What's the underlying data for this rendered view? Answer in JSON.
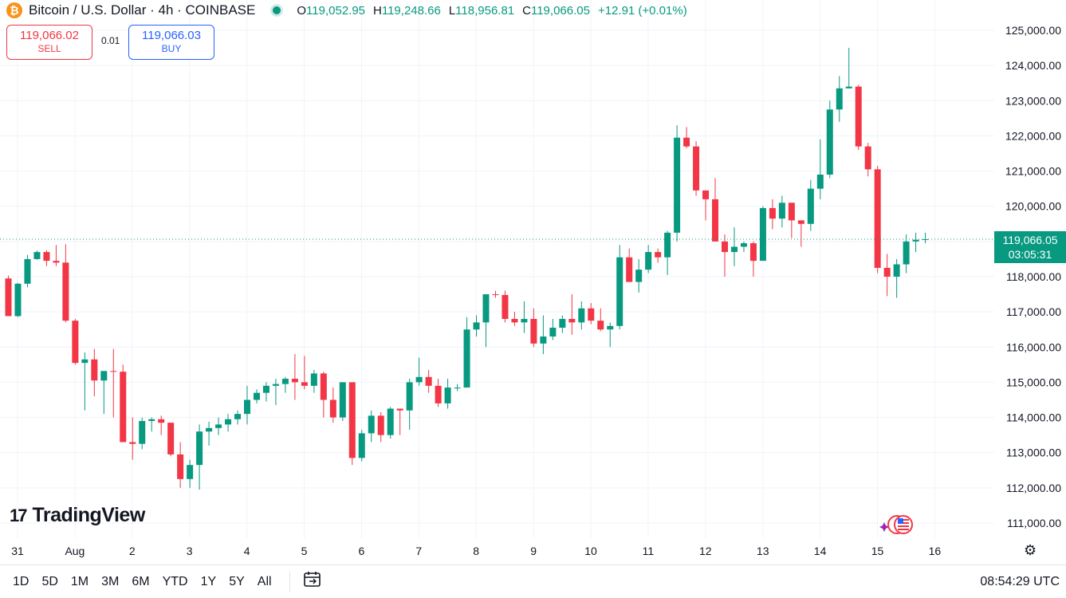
{
  "header": {
    "symbol": "Bitcoin / U.S. Dollar · 4h · COINBASE",
    "coin_glyph": "₿",
    "ohlc": [
      {
        "label": "O",
        "value": "119,052.95"
      },
      {
        "label": "H",
        "value": "119,248.66"
      },
      {
        "label": "L",
        "value": "118,956.81"
      },
      {
        "label": "C",
        "value": "119,066.05"
      }
    ],
    "change": "+12.91 (+0.01%)"
  },
  "trade": {
    "sell_price": "119,066.02",
    "sell_label": "SELL",
    "spread": "0.01",
    "buy_price": "119,066.03",
    "buy_label": "BUY"
  },
  "price_tag": {
    "price": "119,066.05",
    "countdown": "03:05:31"
  },
  "logo": {
    "text": "TradingView",
    "mark": "17"
  },
  "bottom_bar": {
    "timeframes": [
      "1D",
      "5D",
      "1M",
      "3M",
      "6M",
      "YTD",
      "1Y",
      "5Y",
      "All"
    ],
    "clock": "08:54:29 UTC"
  },
  "icons": {
    "coin": "bitcoin-icon",
    "calendar": "calendar-range-icon",
    "settings": "gear-icon",
    "events": "economic-events-icon"
  },
  "colors": {
    "up": "#089981",
    "down": "#f23645",
    "grid": "#f0f3fa",
    "text": "#131722",
    "sell": "#f23645",
    "buy": "#2962ff"
  },
  "chart_data": {
    "type": "candlestick",
    "interval": "4h",
    "ylim": [
      110500,
      125500
    ],
    "y_ticks": [
      111000,
      112000,
      113000,
      114000,
      115000,
      116000,
      117000,
      118000,
      119000,
      120000,
      121000,
      122000,
      123000,
      124000,
      125000
    ],
    "y_tick_labels": [
      "111,000.00",
      "112,000.00",
      "113,000.00",
      "114,000.00",
      "115,000.00",
      "116,000.00",
      "117,000.00",
      "118,000.00",
      "119,000.00",
      "120,000.00",
      "121,000.00",
      "122,000.00",
      "123,000.00",
      "124,000.00",
      "125,000.00"
    ],
    "x_labels": [
      "31",
      "Aug",
      "2",
      "3",
      "4",
      "5",
      "6",
      "7",
      "8",
      "9",
      "10",
      "11",
      "12",
      "13",
      "14",
      "15",
      "16"
    ],
    "last_price": 119066.05,
    "grid": true,
    "candles": [
      [
        117950,
        118030,
        116900,
        116880
      ],
      [
        116880,
        117820,
        116850,
        117800
      ],
      [
        117800,
        118620,
        117700,
        118500
      ],
      [
        118500,
        118740,
        118480,
        118700
      ],
      [
        118700,
        118750,
        118300,
        118450
      ],
      [
        118450,
        118900,
        118300,
        118400
      ],
      [
        118400,
        118920,
        116700,
        116750
      ],
      [
        116750,
        116800,
        115500,
        115550
      ],
      [
        115550,
        115850,
        114200,
        115650
      ],
      [
        115650,
        115950,
        114600,
        115050
      ],
      [
        115050,
        115320,
        114100,
        115320
      ],
      [
        115320,
        115950,
        114000,
        115300
      ],
      [
        115300,
        115500,
        113300,
        113300
      ],
      [
        113300,
        114000,
        112800,
        113250
      ],
      [
        113250,
        114000,
        113100,
        113900
      ],
      [
        113900,
        114000,
        113600,
        113950
      ],
      [
        113950,
        114050,
        113500,
        113850
      ],
      [
        113850,
        113850,
        112900,
        112950
      ],
      [
        112950,
        113300,
        112000,
        112250
      ],
      [
        112250,
        112800,
        112000,
        112650
      ],
      [
        112650,
        113800,
        111950,
        113600
      ],
      [
        113600,
        113880,
        113200,
        113700
      ],
      [
        113700,
        114000,
        113500,
        113800
      ],
      [
        113800,
        114100,
        113600,
        113950
      ],
      [
        113950,
        114200,
        113800,
        114100
      ],
      [
        114100,
        114900,
        113800,
        114500
      ],
      [
        114500,
        114800,
        114400,
        114700
      ],
      [
        114700,
        115000,
        114450,
        114900
      ],
      [
        114900,
        115100,
        114350,
        114950
      ],
      [
        114950,
        115150,
        114700,
        115100
      ],
      [
        115100,
        115800,
        114500,
        115000
      ],
      [
        115000,
        115750,
        114800,
        114900
      ],
      [
        114900,
        115350,
        114700,
        115250
      ],
      [
        115250,
        115300,
        114000,
        114500
      ],
      [
        114500,
        114850,
        113850,
        114000
      ],
      [
        114000,
        115000,
        113900,
        115000
      ],
      [
        115000,
        115000,
        112650,
        112850
      ],
      [
        112850,
        113650,
        112750,
        113550
      ],
      [
        113550,
        114200,
        113300,
        114050
      ],
      [
        114050,
        114150,
        113300,
        113500
      ],
      [
        113500,
        114300,
        113400,
        114250
      ],
      [
        114250,
        114250,
        113500,
        114200
      ],
      [
        114200,
        115100,
        113650,
        115000
      ],
      [
        115000,
        115700,
        114900,
        115150
      ],
      [
        115150,
        115350,
        114700,
        114900
      ],
      [
        114900,
        115100,
        114300,
        114400
      ],
      [
        114400,
        115100,
        114250,
        114850
      ],
      [
        114850,
        114950,
        114750,
        114850
      ],
      [
        114850,
        116850,
        114850,
        116500
      ],
      [
        116500,
        116900,
        116300,
        116700
      ],
      [
        116700,
        117400,
        116000,
        117500
      ],
      [
        117500,
        117600,
        117400,
        117480
      ],
      [
        117480,
        117600,
        116700,
        116800
      ],
      [
        116800,
        117000,
        116600,
        116700
      ],
      [
        116700,
        117300,
        116400,
        116800
      ],
      [
        116800,
        117100,
        116000,
        116100
      ],
      [
        116100,
        116900,
        115800,
        116300
      ],
      [
        116300,
        116800,
        116200,
        116550
      ],
      [
        116550,
        116900,
        116400,
        116800
      ],
      [
        116800,
        117500,
        116350,
        116700
      ],
      [
        116700,
        117300,
        116500,
        117100
      ],
      [
        117100,
        117250,
        116650,
        116750
      ],
      [
        116750,
        117100,
        116450,
        116500
      ],
      [
        116500,
        116700,
        116000,
        116600
      ],
      [
        116600,
        118900,
        116500,
        118550
      ],
      [
        118550,
        118800,
        117900,
        117850
      ],
      [
        117850,
        118500,
        117550,
        118200
      ],
      [
        118200,
        118900,
        118100,
        118700
      ],
      [
        118700,
        118800,
        118400,
        118550
      ],
      [
        118550,
        119300,
        118050,
        119250
      ],
      [
        119250,
        122300,
        119000,
        121950
      ],
      [
        121950,
        122250,
        121650,
        121700
      ],
      [
        121700,
        121850,
        120300,
        120450
      ],
      [
        120450,
        120450,
        119600,
        120200
      ],
      [
        120200,
        120800,
        119000,
        119000
      ],
      [
        119000,
        119200,
        118000,
        118700
      ],
      [
        118700,
        119400,
        118300,
        118850
      ],
      [
        118850,
        119000,
        118700,
        118950
      ],
      [
        118950,
        119000,
        118000,
        118450
      ],
      [
        118450,
        120000,
        118500,
        119950
      ],
      [
        119950,
        120200,
        119350,
        119650
      ],
      [
        119650,
        120300,
        119400,
        120100
      ],
      [
        120100,
        120100,
        119100,
        119600
      ],
      [
        119600,
        119600,
        118850,
        119500
      ],
      [
        119500,
        120750,
        119300,
        120500
      ],
      [
        120500,
        121900,
        120200,
        120900
      ],
      [
        120900,
        123000,
        120800,
        122750
      ],
      [
        122750,
        123700,
        122400,
        123350
      ],
      [
        123350,
        124500,
        123350,
        123400
      ],
      [
        123400,
        123450,
        121600,
        121700
      ],
      [
        121700,
        121800,
        120850,
        121050
      ],
      [
        121050,
        121150,
        118100,
        118250
      ],
      [
        118250,
        118650,
        117450,
        118000
      ],
      [
        118000,
        118500,
        117400,
        118350
      ],
      [
        118350,
        119200,
        118100,
        119000
      ],
      [
        119000,
        119250,
        118700,
        119050
      ],
      [
        119050,
        119250,
        118950,
        119066
      ]
    ]
  }
}
